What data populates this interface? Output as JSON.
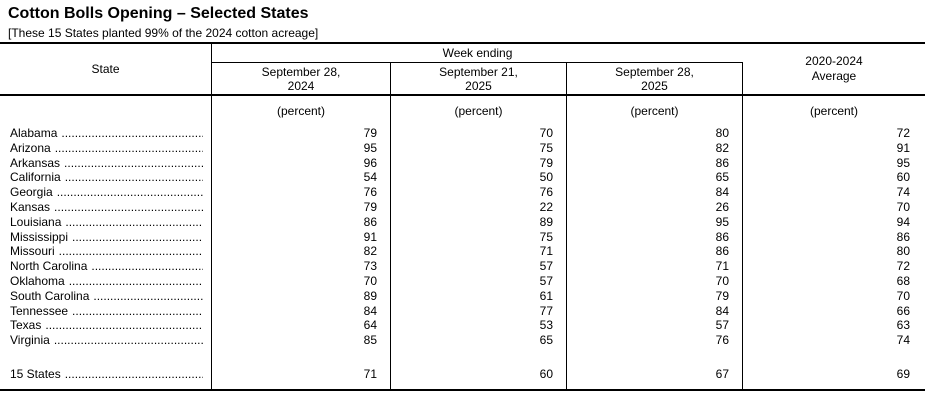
{
  "title": "Cotton Bolls Opening – Selected States",
  "subtitle": "[These 15 States planted 99% of the 2024 cotton acreage]",
  "table": {
    "state_header": "State",
    "week_ending_label": "Week ending",
    "columns": [
      {
        "line1": "September 28,",
        "line2": "2024"
      },
      {
        "line1": "September 21,",
        "line2": "2025"
      },
      {
        "line1": "September 28,",
        "line2": "2025"
      }
    ],
    "average_header": {
      "line1": "2020-2024",
      "line2": "Average"
    },
    "unit_label": "(percent)",
    "leader_dots": "........................................................................",
    "rows": [
      {
        "state": "Alabama",
        "values": [
          "79",
          "70",
          "80",
          "72"
        ]
      },
      {
        "state": "Arizona",
        "values": [
          "95",
          "75",
          "82",
          "91"
        ]
      },
      {
        "state": "Arkansas",
        "values": [
          "96",
          "79",
          "86",
          "95"
        ]
      },
      {
        "state": "California",
        "values": [
          "54",
          "50",
          "65",
          "60"
        ]
      },
      {
        "state": "Georgia",
        "values": [
          "76",
          "76",
          "84",
          "74"
        ]
      },
      {
        "state": "Kansas",
        "values": [
          "79",
          "22",
          "26",
          "70"
        ]
      },
      {
        "state": "Louisiana",
        "values": [
          "86",
          "89",
          "95",
          "94"
        ]
      },
      {
        "state": "Mississippi",
        "values": [
          "91",
          "75",
          "86",
          "86"
        ]
      },
      {
        "state": "Missouri",
        "values": [
          "82",
          "71",
          "86",
          "80"
        ]
      },
      {
        "state": "North Carolina",
        "values": [
          "73",
          "57",
          "71",
          "72"
        ]
      },
      {
        "state": "Oklahoma",
        "values": [
          "70",
          "57",
          "70",
          "68"
        ]
      },
      {
        "state": "South Carolina",
        "values": [
          "89",
          "61",
          "79",
          "70"
        ]
      },
      {
        "state": "Tennessee",
        "values": [
          "84",
          "77",
          "84",
          "66"
        ]
      },
      {
        "state": "Texas",
        "values": [
          "64",
          "53",
          "57",
          "63"
        ]
      },
      {
        "state": "Virginia",
        "values": [
          "85",
          "65",
          "76",
          "74"
        ]
      }
    ],
    "total": {
      "state": "15 States",
      "values": [
        "71",
        "60",
        "67",
        "69"
      ]
    }
  }
}
